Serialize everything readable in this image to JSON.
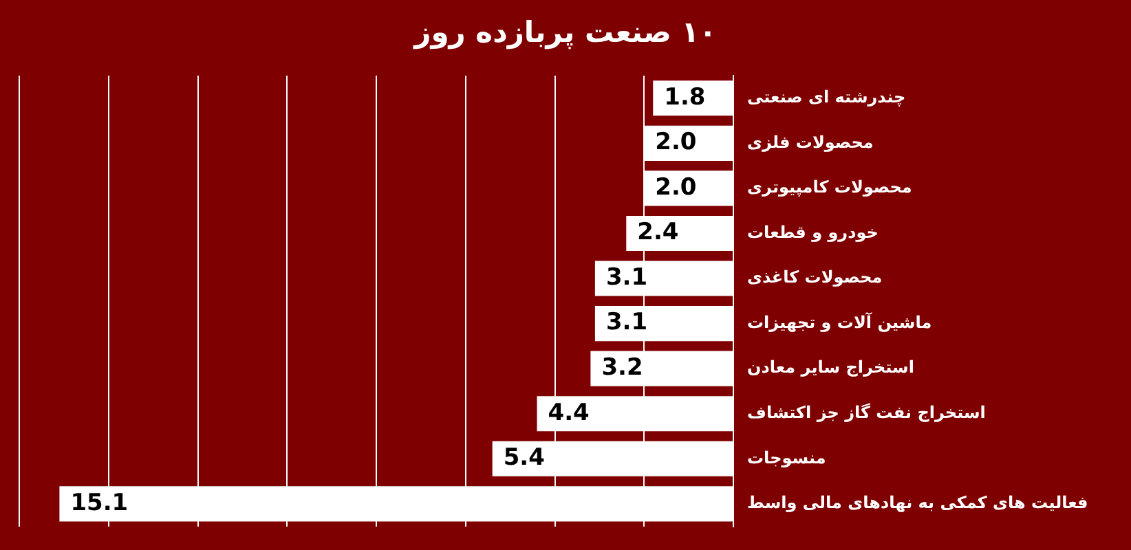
{
  "chart_data": {
    "type": "bar",
    "orientation": "horizontal",
    "title": "۱۰ صنعت پربازده روز",
    "categories": [
      "چندرشته ای صنعتی",
      "محصولات فلزی",
      "محصولات کامپیوتری",
      "خودرو و قطعات",
      "محصولات کاغذی",
      "ماشین آلات و تجهیزات",
      "استخراج سایر معادن",
      "استخراج نفت گاز جز اکتشاف",
      "منسوجات",
      "فعالیت های کمکی به نهادهای مالی واسط"
    ],
    "values": [
      1.8,
      2.0,
      2.0,
      2.4,
      3.1,
      3.1,
      3.2,
      4.4,
      5.4,
      15.1
    ],
    "color": "#ffffff",
    "value_labels": [
      "1.8",
      "2.0",
      "2.0",
      "2.4",
      "3.1",
      "3.1",
      "3.2",
      "4.4",
      "5.4",
      "15.1"
    ],
    "xlim": [
      16,
      0
    ],
    "xticks": [
      {
        "value": 16,
        "label": null
      },
      {
        "value": 14,
        "label": null
      },
      {
        "value": 12,
        "label": null
      },
      {
        "value": 10,
        "label": null
      },
      {
        "value": 8,
        "label": null
      },
      {
        "value": 6,
        "label": null
      },
      {
        "value": 4,
        "label": null
      },
      {
        "value": 2,
        "label": null
      },
      {
        "value": 0,
        "label": null
      }
    ],
    "grid": "x",
    "tick_labels": "y",
    "legend": false
  }
}
